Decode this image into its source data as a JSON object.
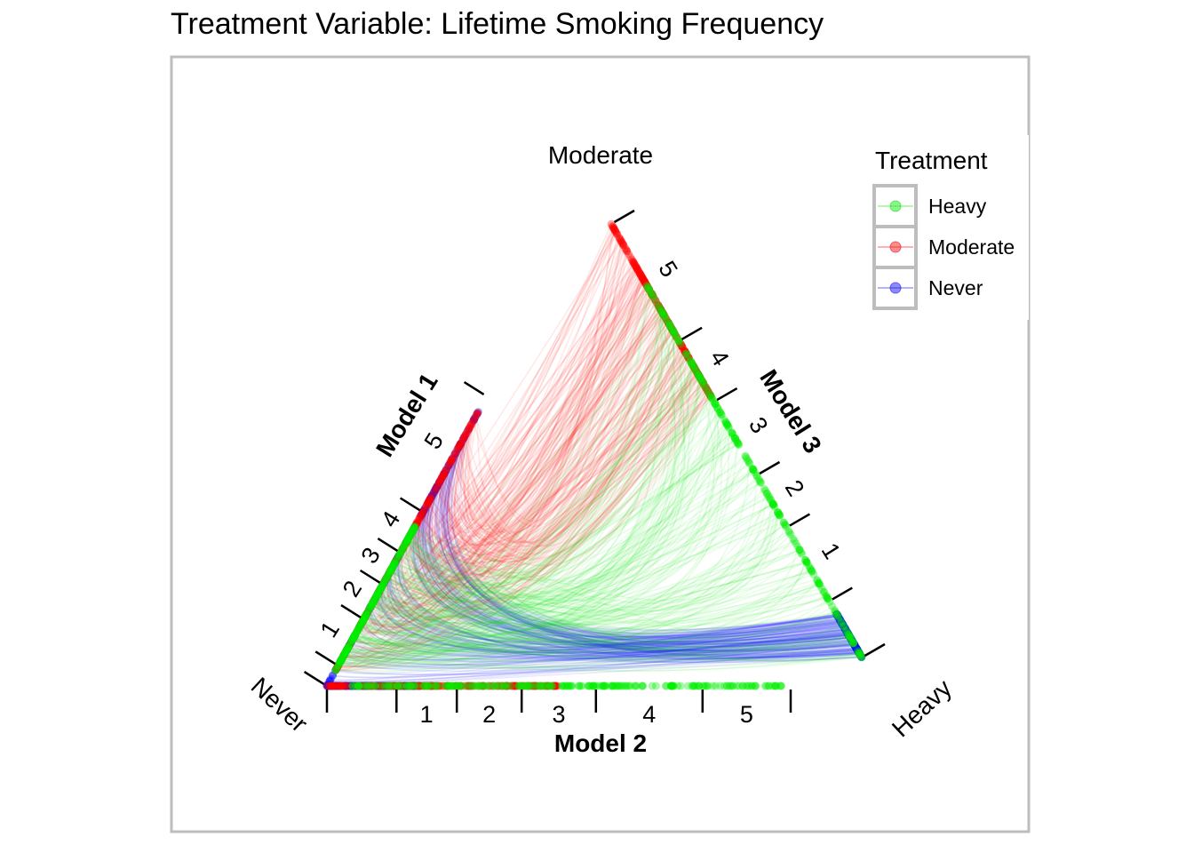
{
  "chart_data": {
    "type": "scatter",
    "title": "Treatment Variable: Lifetime Smoking Frequency",
    "vertex_labels": {
      "left": "Never",
      "top": "Moderate",
      "right": "Heavy"
    },
    "axes": [
      {
        "name": "Model 1",
        "edge": "left",
        "ticks": [
          "1",
          "2",
          "3",
          "4",
          "5"
        ]
      },
      {
        "name": "Model 2",
        "edge": "bottom",
        "ticks": [
          "1",
          "2",
          "3",
          "4",
          "5"
        ]
      },
      {
        "name": "Model 3",
        "edge": "right",
        "ticks": [
          "1",
          "2",
          "3",
          "4",
          "5"
        ]
      }
    ],
    "legend": {
      "title": "Treatment",
      "placement": "top-right",
      "entries": [
        {
          "name": "Heavy",
          "color": "#00ee00"
        },
        {
          "name": "Moderate",
          "color": "#ff0000"
        },
        {
          "name": "Never",
          "color": "#0000ff"
        }
      ]
    },
    "series": [
      {
        "name": "Heavy",
        "color": "#00ee00",
        "model1_range": [
          0.05,
          0.55
        ],
        "model2_range": [
          0.05,
          0.98
        ],
        "model3_range": [
          0.0,
          0.86
        ]
      },
      {
        "name": "Moderate",
        "color": "#ff0000",
        "model1_range": [
          0.05,
          0.95
        ],
        "model2_range": [
          0.0,
          0.5
        ],
        "model3_range": [
          0.6,
          1.0
        ]
      },
      {
        "name": "Never",
        "color": "#0000ff",
        "model1_range": [
          0.0,
          0.95
        ],
        "model2_range": [
          0.0,
          0.2
        ],
        "model3_range": [
          0.0,
          0.1
        ]
      }
    ]
  }
}
